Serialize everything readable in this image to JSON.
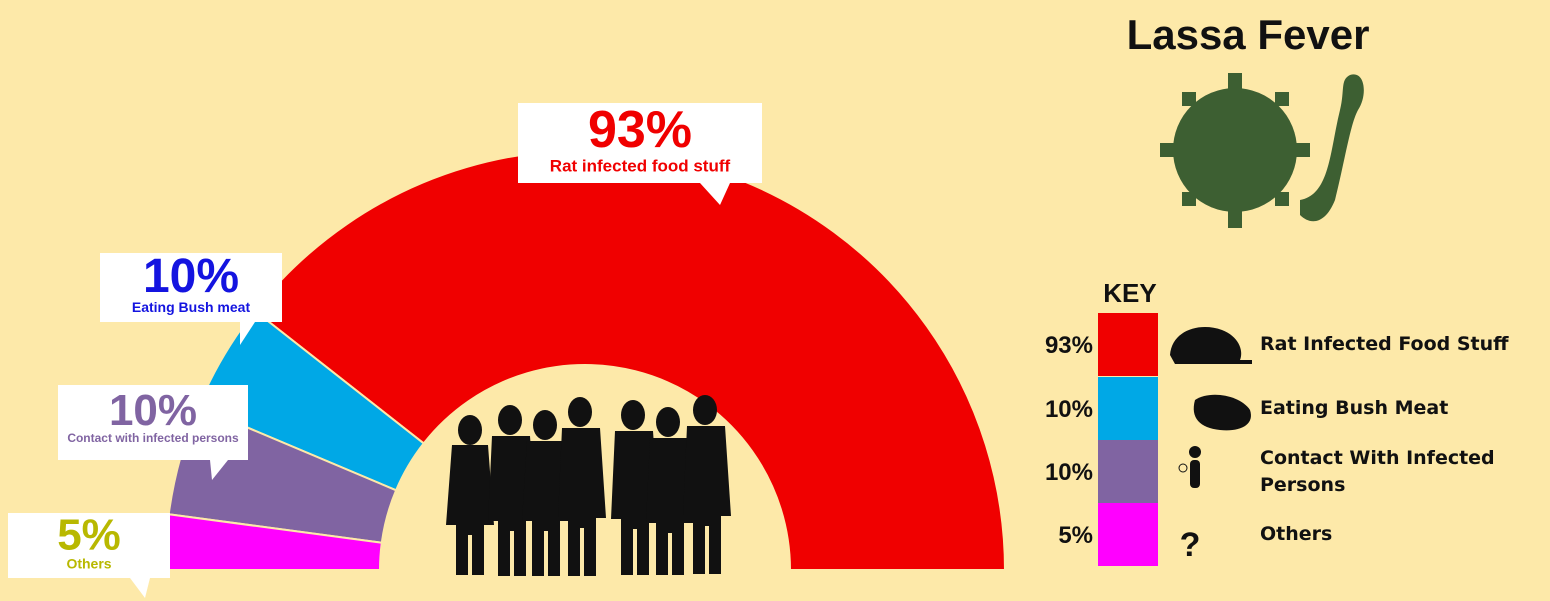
{
  "chart_data": {
    "type": "pie",
    "shape": "half-donut",
    "title": "Lassa Fever",
    "legend_title": "KEY",
    "categories": [
      "Rat infected food stuff",
      "Eating Bush meat",
      "Contact with infected persons",
      "Others"
    ],
    "key_labels": [
      "Rat Infected Food Stuff",
      "Eating Bush Meat",
      "Contact With Infected Persons",
      "Others"
    ],
    "values": [
      93,
      10,
      10,
      5
    ],
    "value_labels": [
      "93%",
      "10%",
      "10%",
      "5%"
    ],
    "colors": [
      "#f00000",
      "#00a8e6",
      "#8064a2",
      "#ff00ff"
    ],
    "label_colors": [
      "#f00000",
      "#1414e0",
      "#8064a2",
      "#b8b800"
    ]
  }
}
